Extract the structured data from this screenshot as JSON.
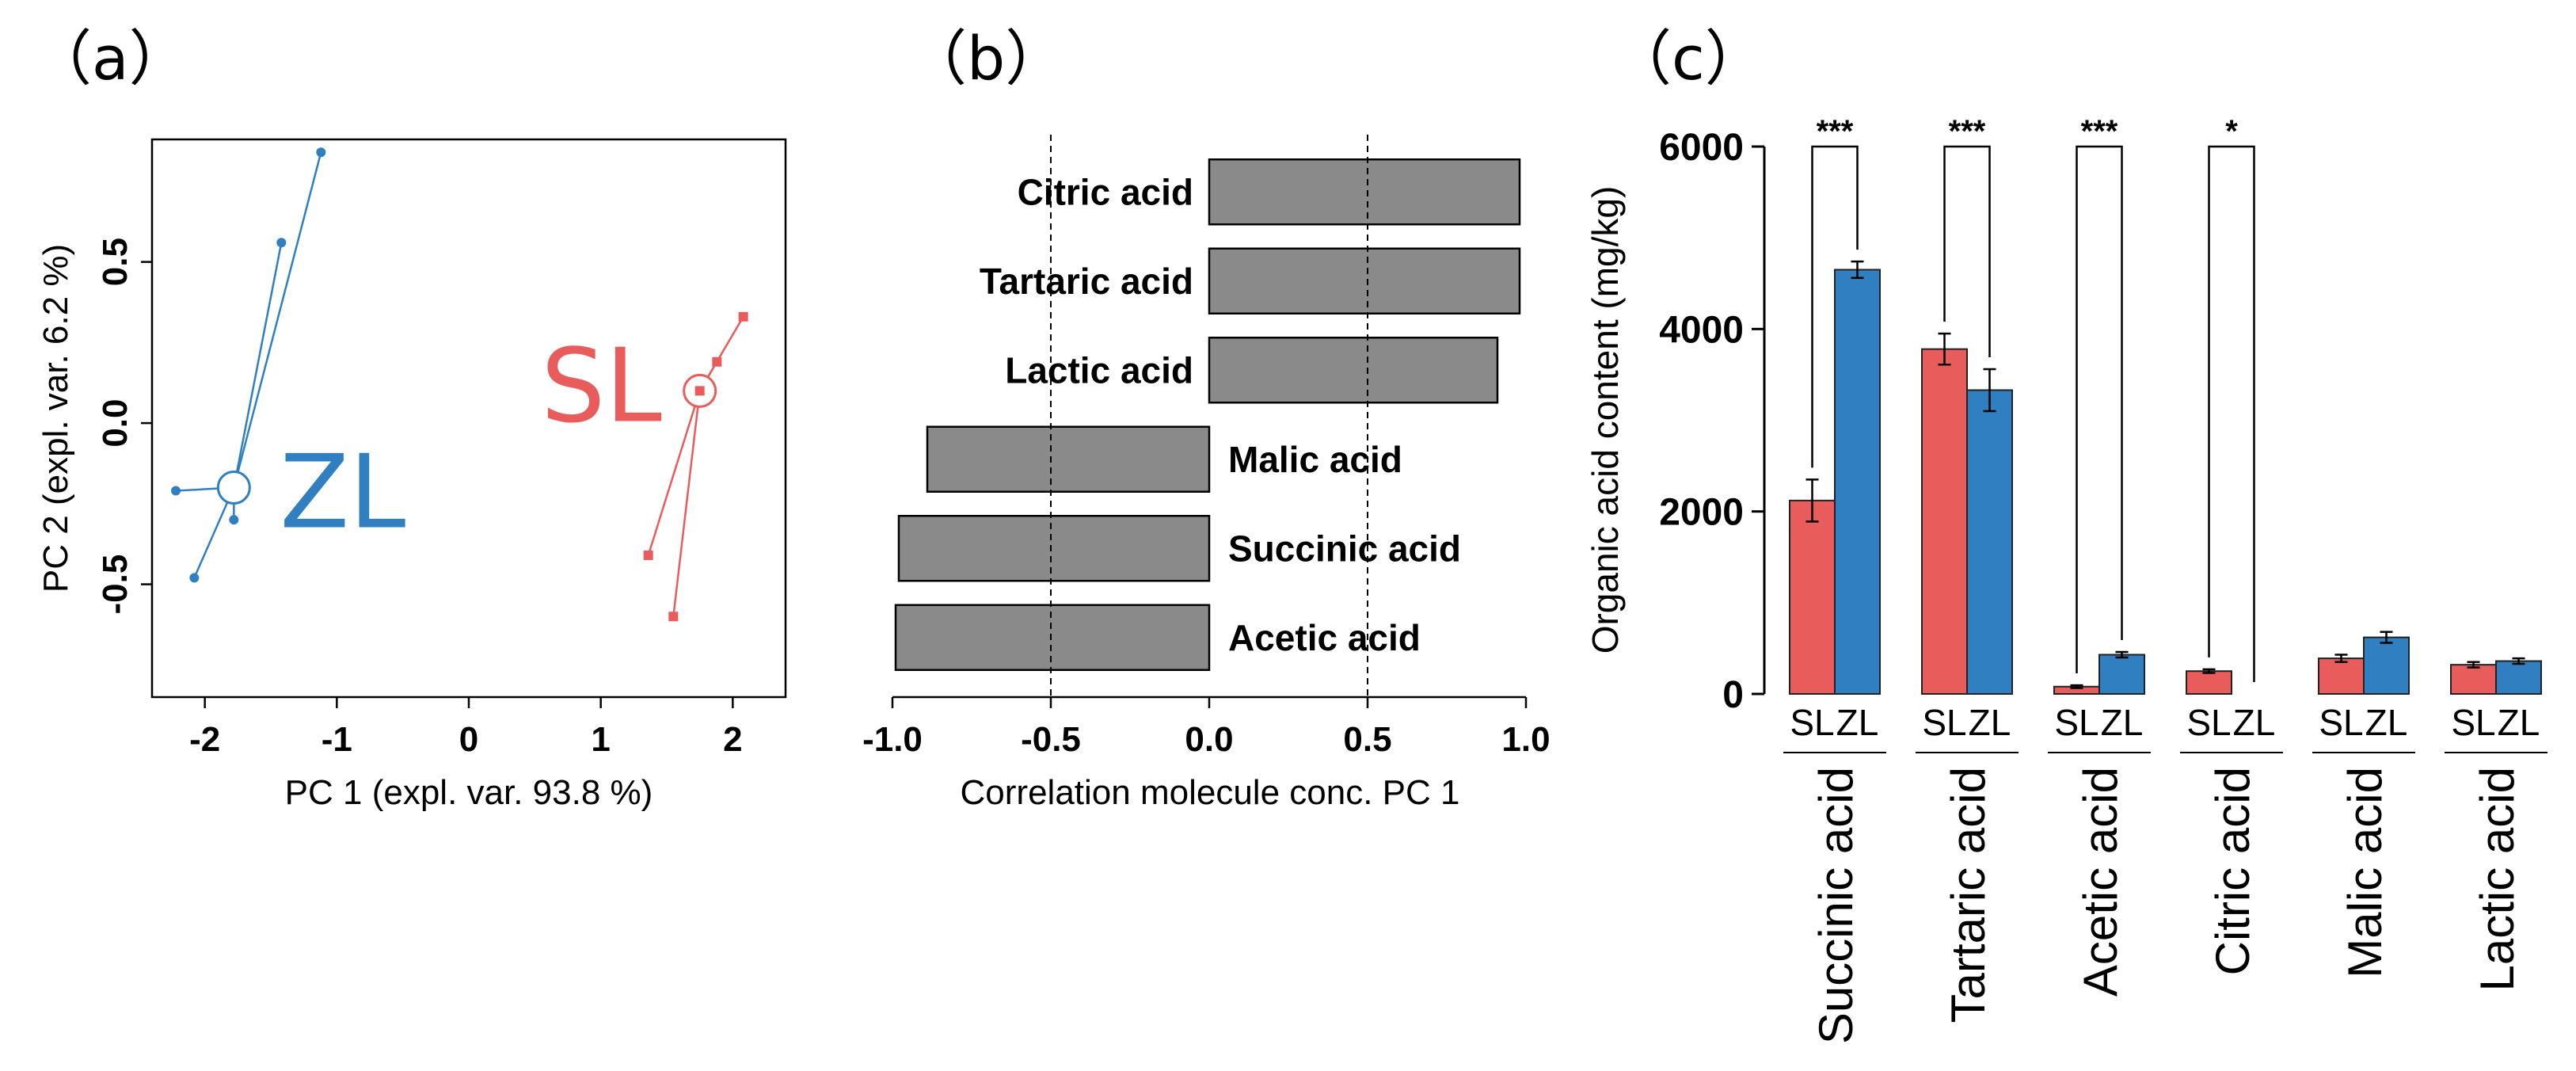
{
  "panels": {
    "a": "（a）",
    "b": "（b）",
    "c": "（c）"
  },
  "colors": {
    "SL": "#e85c5c",
    "ZL": "#2f7fc1",
    "bar_gray": "#8a8a8a"
  },
  "chart_data": [
    {
      "type": "scatter",
      "panel": "a",
      "xlabel": "PC 1 (expl. var. 93.8 %)",
      "ylabel": "PC 2 (expl. var. 6.2 %)",
      "xlim": [
        -2.4,
        2.4
      ],
      "ylim": [
        -0.85,
        0.88
      ],
      "xticks": [
        -2,
        -1,
        0,
        1,
        2
      ],
      "yticks": [
        -0.5,
        0.0,
        0.5
      ],
      "ytick_labels": [
        "-0.5",
        "0.0",
        "0.5"
      ],
      "series": [
        {
          "name": "ZL",
          "color_key": "ZL",
          "marker": "circle",
          "centroid": [
            -1.78,
            -0.2
          ],
          "points": [
            [
              -1.12,
              0.84
            ],
            [
              -1.42,
              0.56
            ],
            [
              -2.22,
              -0.21
            ],
            [
              -2.08,
              -0.48
            ],
            [
              -1.78,
              -0.3
            ]
          ]
        },
        {
          "name": "SL",
          "color_key": "SL",
          "marker": "square",
          "centroid": [
            1.75,
            0.1
          ],
          "points": [
            [
              2.08,
              0.33
            ],
            [
              1.88,
              0.19
            ],
            [
              1.78,
              0.1
            ],
            [
              1.36,
              -0.41
            ],
            [
              1.55,
              -0.6
            ]
          ]
        }
      ],
      "grid": false
    },
    {
      "type": "bar",
      "panel": "b",
      "orientation": "horizontal",
      "xlabel": "Correlation molecule conc. PC 1",
      "xlim": [
        -1.0,
        1.0
      ],
      "xticks": [
        -1.0,
        -0.5,
        0.0,
        0.5,
        1.0
      ],
      "xtick_labels": [
        "-1.0",
        "-0.5",
        "0.0",
        "0.5",
        "1.0"
      ],
      "reference_lines": [
        -0.5,
        0.5
      ],
      "categories": [
        "Citric acid",
        "Tartaric acid",
        "Lactic acid",
        "Malic acid",
        "Succinic acid",
        "Acetic acid"
      ],
      "values": [
        0.98,
        0.98,
        0.91,
        -0.89,
        -0.98,
        -0.99
      ]
    },
    {
      "type": "bar",
      "panel": "c",
      "ylabel": "Organic acid content (mg/kg)",
      "ylim": [
        0,
        6000
      ],
      "yticks": [
        0,
        2000,
        4000,
        6000
      ],
      "categories": [
        "Succinic acid",
        "Tartaric acid",
        "Acetic acid",
        "Citric acid",
        "Malic acid",
        "Lactic acid"
      ],
      "series": [
        {
          "name": "SL",
          "color_key": "SL",
          "values": [
            2120,
            3780,
            80,
            250,
            390,
            320
          ],
          "errors": [
            230,
            170,
            15,
            20,
            40,
            30
          ]
        },
        {
          "name": "ZL",
          "color_key": "ZL",
          "values": [
            4650,
            3330,
            430,
            0,
            620,
            360
          ],
          "errors": [
            90,
            230,
            30,
            0,
            60,
            30
          ]
        }
      ],
      "significance": [
        "***",
        "***",
        "***",
        "*",
        "",
        ""
      ]
    }
  ]
}
